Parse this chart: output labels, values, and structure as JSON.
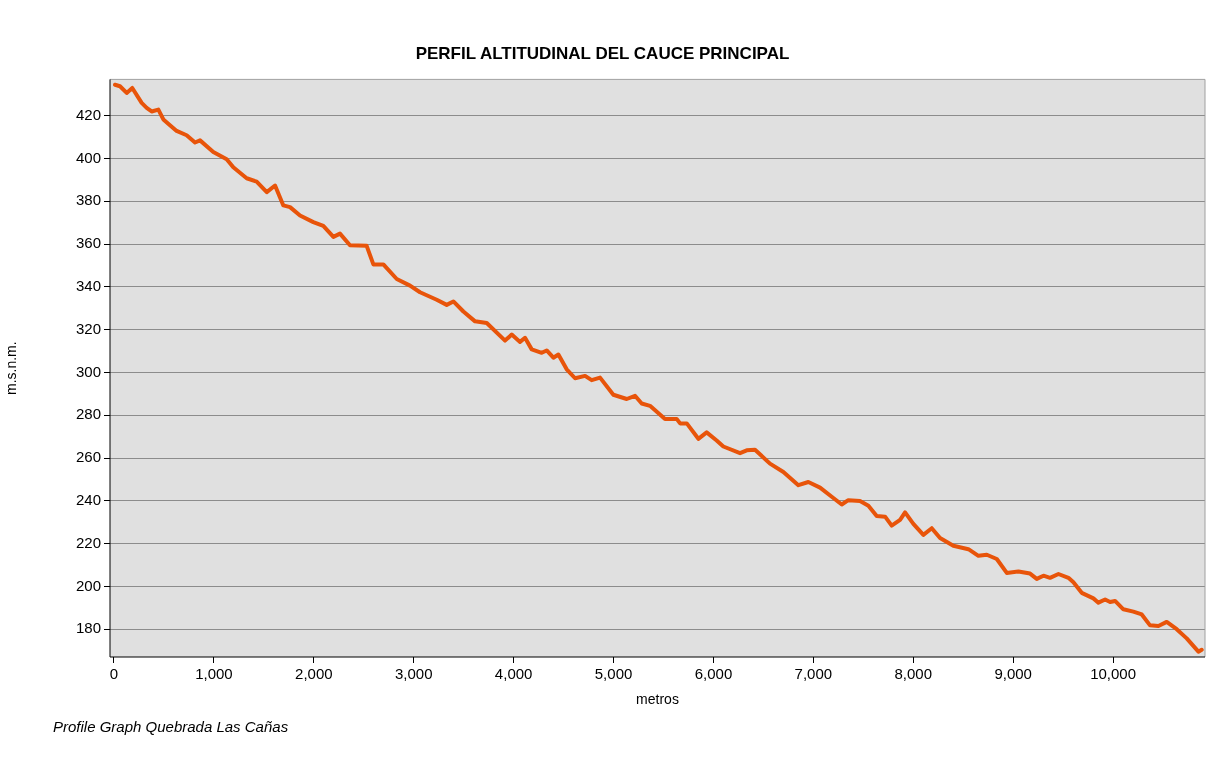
{
  "chart_data": {
    "type": "line",
    "title": "PERFIL ALTITUDINAL DEL CAUCE PRINCIPAL",
    "xlabel": "metros",
    "ylabel": "m.s.n.m.",
    "annotations": [
      "Profile Graph Quebrada Las Cañas"
    ],
    "xlim": [
      -40,
      10920
    ],
    "ylim": [
      167,
      437
    ],
    "xticks": [
      {
        "value": 0,
        "label": "0"
      },
      {
        "value": 1000,
        "label": "1,000"
      },
      {
        "value": 2000,
        "label": "2,000"
      },
      {
        "value": 3000,
        "label": "3,000"
      },
      {
        "value": 4000,
        "label": "4,000"
      },
      {
        "value": 5000,
        "label": "5,000"
      },
      {
        "value": 6000,
        "label": "6,000"
      },
      {
        "value": 7000,
        "label": "7,000"
      },
      {
        "value": 8000,
        "label": "8,000"
      },
      {
        "value": 9000,
        "label": "9,000"
      },
      {
        "value": 10000,
        "label": "10,000"
      }
    ],
    "yticks": [
      180,
      200,
      220,
      240,
      260,
      280,
      300,
      320,
      340,
      360,
      380,
      400,
      420
    ],
    "grid": "y",
    "legend": false,
    "series": [
      {
        "color": "#e8540a",
        "x": [
          10,
          60,
          127,
          183,
          277,
          327,
          377,
          444,
          494,
          627,
          727,
          811,
          861,
          994,
          1128,
          1194,
          1328,
          1428,
          1529,
          1612,
          1695,
          1762,
          1862,
          1995,
          2095,
          2196,
          2262,
          2362,
          2529,
          2596,
          2696,
          2830,
          2963,
          3063,
          3230,
          3330,
          3397,
          3497,
          3614,
          3731,
          3914,
          3981,
          4064,
          4114,
          4181,
          4281,
          4331,
          4398,
          4448,
          4531,
          4615,
          4715,
          4781,
          4865,
          4998,
          5132,
          5215,
          5282,
          5365,
          5515,
          5632,
          5666,
          5733,
          5849,
          5932,
          6032,
          6099,
          6266,
          6333,
          6416,
          6566,
          6700,
          6850,
          6950,
          7067,
          7184,
          7284,
          7350,
          7467,
          7551,
          7634,
          7718,
          7784,
          7868,
          7918,
          8001,
          8101,
          8185,
          8268,
          8401,
          8552,
          8652,
          8736,
          8836,
          8936,
          9053,
          9169,
          9236,
          9303,
          9369,
          9453,
          9553,
          9603,
          9686,
          9803,
          9853,
          9920,
          9970,
          10020,
          10103,
          10203,
          10287,
          10370,
          10454,
          10537,
          10637,
          10737,
          10854,
          10887
        ],
        "values": [
          434.5,
          433.8,
          430.7,
          433,
          426,
          423.7,
          422,
          422.9,
          418.3,
          412.9,
          410.9,
          407.5,
          408.5,
          403.1,
          399.7,
          395.9,
          390.8,
          389.2,
          384.3,
          387.4,
          378.1,
          377.3,
          373.4,
          370.3,
          368.5,
          363.4,
          364.9,
          359.5,
          359.2,
          350.5,
          350.5,
          343.7,
          340.6,
          337.5,
          334,
          331.6,
          333.2,
          328.5,
          323.9,
          323.1,
          314.9,
          317.7,
          314.3,
          316.2,
          310.8,
          309.2,
          310.3,
          306.9,
          308.4,
          301.5,
          297.3,
          298.4,
          296.4,
          297.6,
          289.6,
          287.6,
          289.1,
          285.5,
          284.4,
          278.3,
          278.3,
          276.2,
          276.2,
          269,
          272,
          268.2,
          265.4,
          262.3,
          263.6,
          263.9,
          257.4,
          253.5,
          247.3,
          248.8,
          246.2,
          241.9,
          238.3,
          240.3,
          239.9,
          237.7,
          232.9,
          232.6,
          228.4,
          231.1,
          234.6,
          229.2,
          224.1,
          227.2,
          222.6,
          219,
          217.4,
          214.3,
          214.8,
          212.8,
          206.3,
          207,
          206,
          203.5,
          205,
          204,
          205.8,
          204,
          201.9,
          197,
          194.4,
          192.4,
          193.9,
          192.7,
          193.2,
          189.3,
          188.2,
          186.9,
          181.8,
          181.5,
          183.4,
          180,
          175.7,
          169.5,
          170.4
        ]
      }
    ]
  }
}
